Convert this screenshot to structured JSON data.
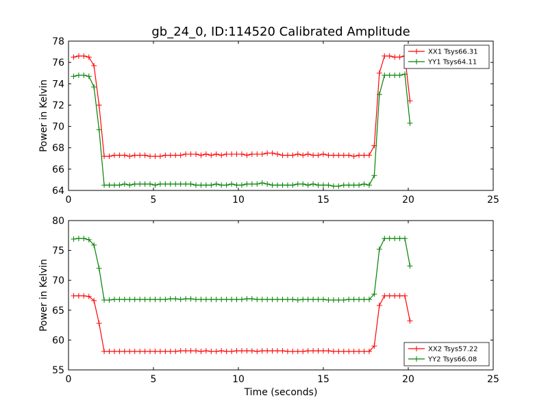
{
  "figure_title": "gb_24_0, ID:114520 Calibrated Amplitude",
  "chart_data": [
    {
      "type": "line",
      "ylabel": "Power in Kelvin",
      "xlabel": "",
      "xlim": [
        0,
        25
      ],
      "ylim": [
        64,
        78
      ],
      "xticks": [
        0,
        5,
        10,
        15,
        20,
        25
      ],
      "yticks": [
        64,
        66,
        68,
        70,
        72,
        74,
        76,
        78
      ],
      "grid": false,
      "legend_loc": "upper right",
      "x": [
        0.3,
        0.6,
        0.9,
        1.2,
        1.5,
        1.8,
        2.1,
        2.4,
        2.7,
        3.0,
        3.3,
        3.6,
        3.9,
        4.2,
        4.5,
        4.8,
        5.1,
        5.4,
        5.7,
        6.0,
        6.3,
        6.6,
        6.9,
        7.2,
        7.5,
        7.8,
        8.1,
        8.4,
        8.7,
        9.0,
        9.3,
        9.6,
        9.9,
        10.2,
        10.5,
        10.8,
        11.1,
        11.4,
        11.7,
        12.0,
        12.3,
        12.6,
        12.9,
        13.2,
        13.5,
        13.8,
        14.1,
        14.4,
        14.7,
        15.0,
        15.3,
        15.6,
        15.9,
        16.2,
        16.5,
        16.8,
        17.1,
        17.4,
        17.7,
        18.0,
        18.3,
        18.6,
        18.9,
        19.2,
        19.5,
        19.8,
        20.1
      ],
      "series": [
        {
          "name": "XX1 Tsys66.31",
          "color": "#ff0000",
          "values": [
            76.5,
            76.6,
            76.6,
            76.5,
            75.7,
            72.0,
            67.2,
            67.2,
            67.3,
            67.3,
            67.3,
            67.2,
            67.3,
            67.3,
            67.3,
            67.2,
            67.2,
            67.2,
            67.3,
            67.3,
            67.3,
            67.3,
            67.4,
            67.4,
            67.4,
            67.3,
            67.4,
            67.3,
            67.4,
            67.3,
            67.4,
            67.4,
            67.4,
            67.4,
            67.3,
            67.4,
            67.4,
            67.4,
            67.5,
            67.5,
            67.4,
            67.3,
            67.3,
            67.3,
            67.4,
            67.3,
            67.4,
            67.3,
            67.3,
            67.4,
            67.3,
            67.3,
            67.3,
            67.3,
            67.3,
            67.2,
            67.3,
            67.3,
            67.3,
            68.2,
            75.0,
            76.6,
            76.6,
            76.5,
            76.5,
            76.6,
            72.4
          ]
        },
        {
          "name": "YY1 Tsys64.11",
          "color": "#008000",
          "values": [
            74.7,
            74.8,
            74.8,
            74.7,
            73.7,
            69.7,
            64.5,
            64.5,
            64.5,
            64.5,
            64.6,
            64.5,
            64.6,
            64.6,
            64.6,
            64.6,
            64.5,
            64.6,
            64.6,
            64.6,
            64.6,
            64.6,
            64.6,
            64.6,
            64.5,
            64.5,
            64.5,
            64.5,
            64.6,
            64.5,
            64.5,
            64.6,
            64.5,
            64.5,
            64.6,
            64.6,
            64.6,
            64.7,
            64.6,
            64.5,
            64.5,
            64.5,
            64.5,
            64.5,
            64.6,
            64.6,
            64.5,
            64.6,
            64.5,
            64.5,
            64.5,
            64.4,
            64.4,
            64.5,
            64.5,
            64.5,
            64.5,
            64.6,
            64.5,
            65.4,
            73.0,
            74.8,
            74.8,
            74.8,
            74.8,
            74.9,
            70.3
          ]
        }
      ]
    },
    {
      "type": "line",
      "ylabel": "Power in Kelvin",
      "xlabel": "Time (seconds)",
      "xlim": [
        0,
        25
      ],
      "ylim": [
        55,
        80
      ],
      "xticks": [
        0,
        5,
        10,
        15,
        20,
        25
      ],
      "yticks": [
        55,
        60,
        65,
        70,
        75,
        80
      ],
      "grid": false,
      "legend_loc": "lower right",
      "x": [
        0.3,
        0.6,
        0.9,
        1.2,
        1.5,
        1.8,
        2.1,
        2.4,
        2.7,
        3.0,
        3.3,
        3.6,
        3.9,
        4.2,
        4.5,
        4.8,
        5.1,
        5.4,
        5.7,
        6.0,
        6.3,
        6.6,
        6.9,
        7.2,
        7.5,
        7.8,
        8.1,
        8.4,
        8.7,
        9.0,
        9.3,
        9.6,
        9.9,
        10.2,
        10.5,
        10.8,
        11.1,
        11.4,
        11.7,
        12.0,
        12.3,
        12.6,
        12.9,
        13.2,
        13.5,
        13.8,
        14.1,
        14.4,
        14.7,
        15.0,
        15.3,
        15.6,
        15.9,
        16.2,
        16.5,
        16.8,
        17.1,
        17.4,
        17.7,
        18.0,
        18.3,
        18.6,
        18.9,
        19.2,
        19.5,
        19.8,
        20.1
      ],
      "series": [
        {
          "name": "XX2 Tsys57.22",
          "color": "#ff0000",
          "values": [
            67.4,
            67.4,
            67.4,
            67.3,
            66.6,
            62.8,
            58.1,
            58.1,
            58.1,
            58.1,
            58.1,
            58.1,
            58.1,
            58.1,
            58.1,
            58.1,
            58.1,
            58.1,
            58.1,
            58.1,
            58.1,
            58.2,
            58.2,
            58.2,
            58.2,
            58.1,
            58.2,
            58.1,
            58.1,
            58.2,
            58.1,
            58.1,
            58.2,
            58.2,
            58.2,
            58.2,
            58.1,
            58.2,
            58.2,
            58.2,
            58.2,
            58.2,
            58.1,
            58.1,
            58.1,
            58.1,
            58.2,
            58.2,
            58.2,
            58.2,
            58.2,
            58.1,
            58.1,
            58.1,
            58.1,
            58.1,
            58.1,
            58.1,
            58.1,
            59.0,
            65.8,
            67.4,
            67.4,
            67.4,
            67.4,
            67.4,
            63.2
          ]
        },
        {
          "name": "YY2 Tsys66.08",
          "color": "#008000",
          "values": [
            76.9,
            77.0,
            77.0,
            76.8,
            75.9,
            72.0,
            66.7,
            66.7,
            66.8,
            66.8,
            66.8,
            66.8,
            66.8,
            66.8,
            66.8,
            66.8,
            66.8,
            66.8,
            66.8,
            66.9,
            66.9,
            66.8,
            66.9,
            66.9,
            66.8,
            66.8,
            66.8,
            66.8,
            66.8,
            66.8,
            66.8,
            66.8,
            66.8,
            66.8,
            66.9,
            66.9,
            66.8,
            66.8,
            66.8,
            66.8,
            66.8,
            66.8,
            66.8,
            66.8,
            66.7,
            66.8,
            66.8,
            66.8,
            66.8,
            66.8,
            66.7,
            66.7,
            66.7,
            66.7,
            66.8,
            66.8,
            66.8,
            66.8,
            66.8,
            67.7,
            75.2,
            77.0,
            77.0,
            77.0,
            77.0,
            77.0,
            72.4
          ]
        }
      ]
    }
  ]
}
